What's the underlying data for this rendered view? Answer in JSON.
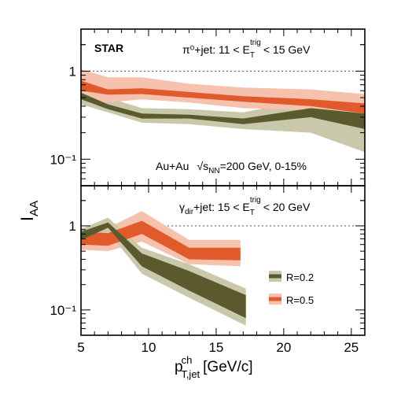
{
  "colors": {
    "r02_fill": "#5a5a2e",
    "r02_band": "#c9c8aa",
    "r05_fill": "#e05a2c",
    "r05_band": "#f7c2ad"
  },
  "labels": {
    "experiment": "STAR",
    "top_channel": "π⁰+jet: 11 < E",
    "top_channel_sub": "T",
    "top_channel_sup": "trig",
    "top_channel_tail": "< 15 GeV",
    "collision": "Au+Au",
    "sqrt": "√s",
    "sqrt_sub": "NN",
    "collision_tail": "=200 GeV, 0-15%",
    "bottom_channel_pre": "γ",
    "bottom_channel_pre_sub": "dir",
    "bottom_channel": "+jet: 15 < E",
    "bottom_channel_sub": "T",
    "bottom_channel_sup": "trig",
    "bottom_channel_tail": "< 20 GeV",
    "ylabel_main": "I",
    "ylabel_sub": "AA",
    "xlabel_main": "p",
    "xlabel_sup": "ch",
    "xlabel_sub": "T,jet",
    "xlabel_unit": "[GeV/c]",
    "legend_r02": "R=0.2",
    "legend_r05": "R=0.5"
  },
  "chart_data": {
    "type": "area",
    "xlim": [
      5,
      26
    ],
    "x_ticks": [
      "5",
      "10",
      "15",
      "20",
      "25"
    ],
    "y_scale": "log",
    "panels": [
      {
        "name": "pi0",
        "ylim": [
          0.05,
          3
        ],
        "y_ticks": [
          {
            "v": 1,
            "label": "1"
          },
          {
            "v": 0.1,
            "label": "10⁻¹"
          }
        ],
        "series": [
          {
            "name": "R=0.2",
            "x": [
              5,
              7,
              9.5,
              13,
              17,
              22,
              26
            ],
            "outer_hi": [
              0.65,
              0.5,
              0.38,
              0.37,
              0.34,
              0.48,
              0.44
            ],
            "outer_lo": [
              0.42,
              0.34,
              0.26,
              0.25,
              0.22,
              0.2,
              0.12
            ],
            "inner_hi": [
              0.57,
              0.42,
              0.33,
              0.32,
              0.29,
              0.38,
              0.33
            ],
            "inner_lo": [
              0.48,
              0.37,
              0.29,
              0.29,
              0.25,
              0.3,
              0.22
            ]
          },
          {
            "name": "R=0.5",
            "x": [
              5,
              7,
              9.5,
              13,
              17,
              22,
              26
            ],
            "outer_hi": [
              1.05,
              0.85,
              0.85,
              0.72,
              0.65,
              0.62,
              0.55
            ],
            "outer_lo": [
              0.5,
              0.44,
              0.48,
              0.44,
              0.38,
              0.36,
              0.3
            ],
            "inner_hi": [
              0.78,
              0.62,
              0.64,
              0.58,
              0.52,
              0.48,
              0.43
            ],
            "inner_lo": [
              0.6,
              0.54,
              0.55,
              0.5,
              0.45,
              0.4,
              0.33
            ]
          }
        ]
      },
      {
        "name": "gamma",
        "ylim": [
          0.05,
          3
        ],
        "y_ticks": [
          {
            "v": 1,
            "label": "1"
          },
          {
            "v": 0.1,
            "label": "10⁻¹"
          }
        ],
        "series": [
          {
            "name": "R=0.2",
            "x": [
              5,
              7,
              9.5,
              13,
              17.2
            ],
            "outer_hi": [
              0.92,
              1.25,
              0.55,
              0.35,
              0.18
            ],
            "outer_lo": [
              0.62,
              0.85,
              0.27,
              0.14,
              0.065
            ],
            "inner_hi": [
              0.85,
              1.1,
              0.47,
              0.29,
              0.15
            ],
            "inner_lo": [
              0.68,
              0.95,
              0.33,
              0.17,
              0.08
            ]
          },
          {
            "name": "R=0.5",
            "x": [
              5,
              7,
              9.5,
              13,
              16.8
            ],
            "outer_hi": [
              0.95,
              0.95,
              1.5,
              0.68,
              0.68
            ],
            "outer_lo": [
              0.52,
              0.5,
              0.65,
              0.35,
              0.33
            ],
            "inner_hi": [
              0.85,
              0.82,
              1.15,
              0.55,
              0.55
            ],
            "inner_lo": [
              0.6,
              0.58,
              0.8,
              0.4,
              0.39
            ]
          }
        ]
      }
    ]
  }
}
